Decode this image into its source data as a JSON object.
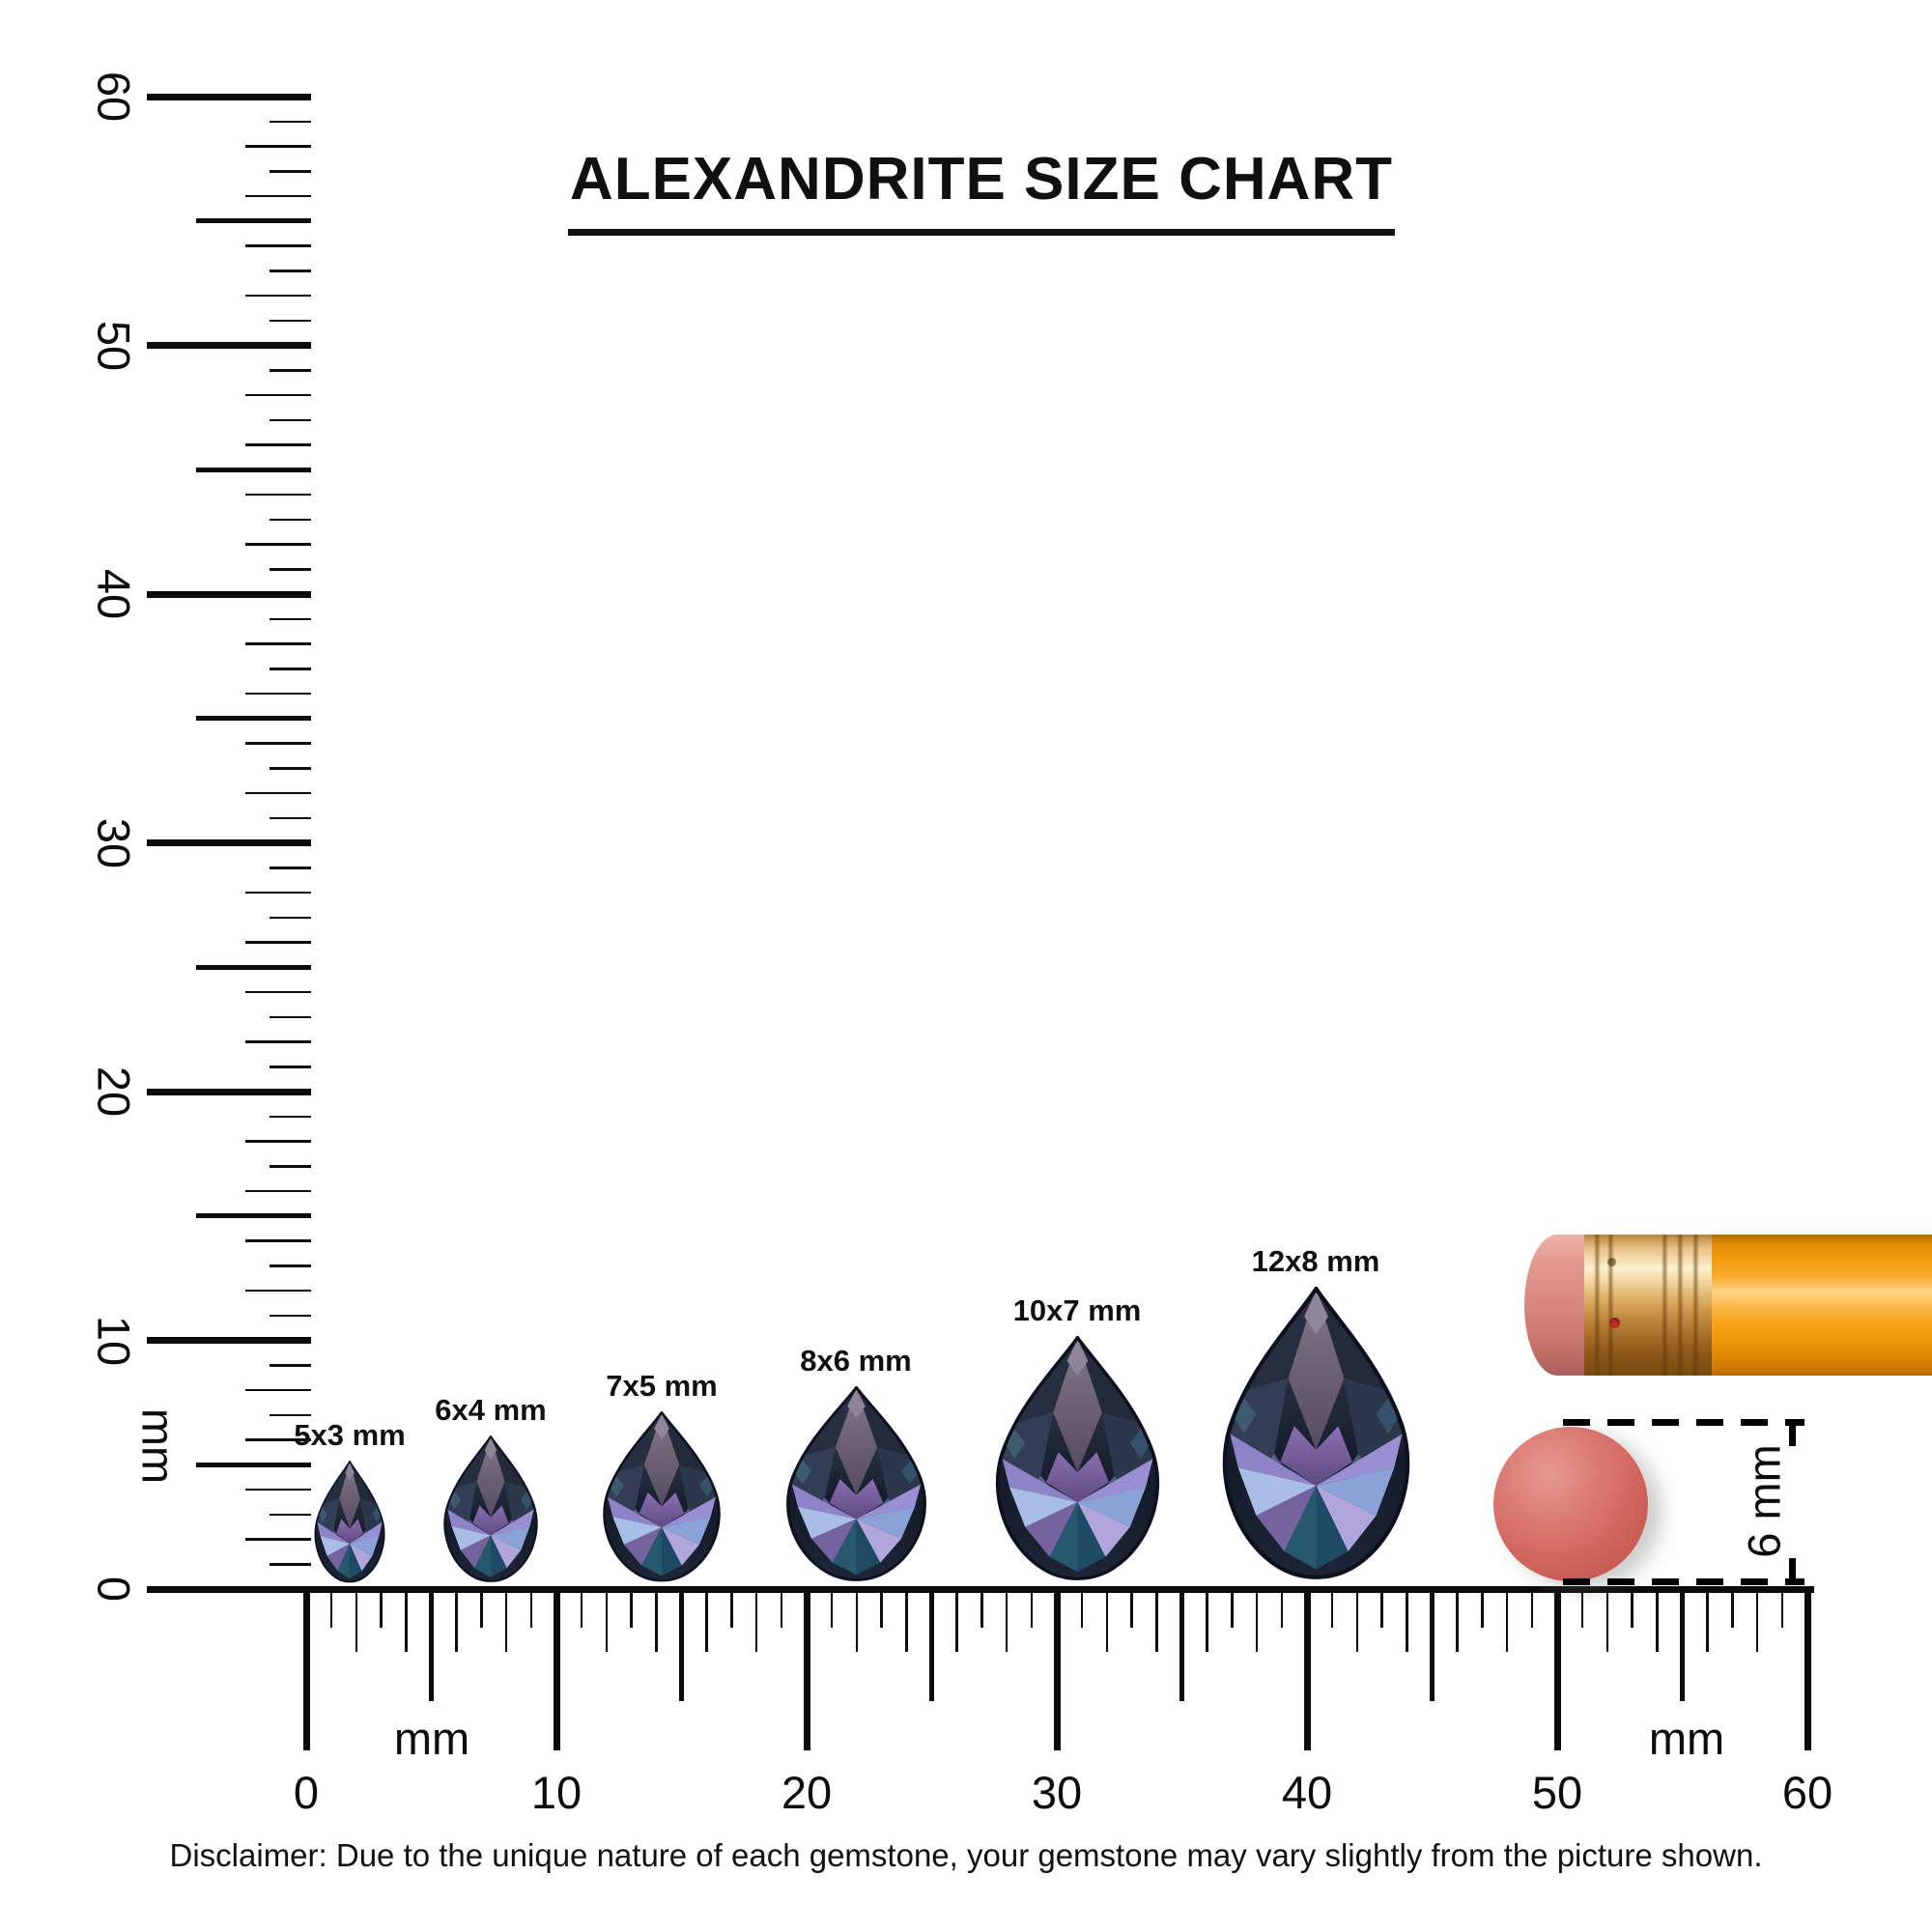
{
  "title": "ALEXANDRITE SIZE CHART",
  "rulers": {
    "vertical": {
      "unit_label": "mm",
      "tick_labels": [
        "0",
        "10",
        "20",
        "30",
        "40",
        "50",
        "60"
      ]
    },
    "horizontal": {
      "unit_label_left": "mm",
      "unit_label_right": "mm",
      "tick_labels": [
        "0",
        "10",
        "20",
        "30",
        "40",
        "50",
        "60"
      ]
    }
  },
  "gems": [
    {
      "label": "5x3 mm",
      "width_mm": 3,
      "height_mm": 5
    },
    {
      "label": "6x4 mm",
      "width_mm": 4,
      "height_mm": 6
    },
    {
      "label": "7x5 mm",
      "width_mm": 5,
      "height_mm": 7
    },
    {
      "label": "8x6 mm",
      "width_mm": 6,
      "height_mm": 8
    },
    {
      "label": "10x7 mm",
      "width_mm": 7,
      "height_mm": 10
    },
    {
      "label": "12x8 mm",
      "width_mm": 8,
      "height_mm": 12
    }
  ],
  "eraser_measure": {
    "label": "6 mm",
    "diameter_mm": 6
  },
  "disclaimer": "Disclaimer: Due to the unique nature of each gemstone, your gemstone may vary slightly from the picture shown.",
  "colors": {
    "ink": "#0c0c0c",
    "gem_dark_navy": "#1c2433",
    "gem_mauve_table": "#6f6577",
    "gem_lavender": "#9a8fd0",
    "gem_periwinkle": "#a8bee6",
    "gem_teal": "#27596e",
    "gem_violet": "#74639f",
    "pencil_orange": "#f9a415",
    "ferrule_gold": "#d8a85c",
    "eraser_pink": "#dd8d85",
    "disc_red": "#d2655e"
  }
}
